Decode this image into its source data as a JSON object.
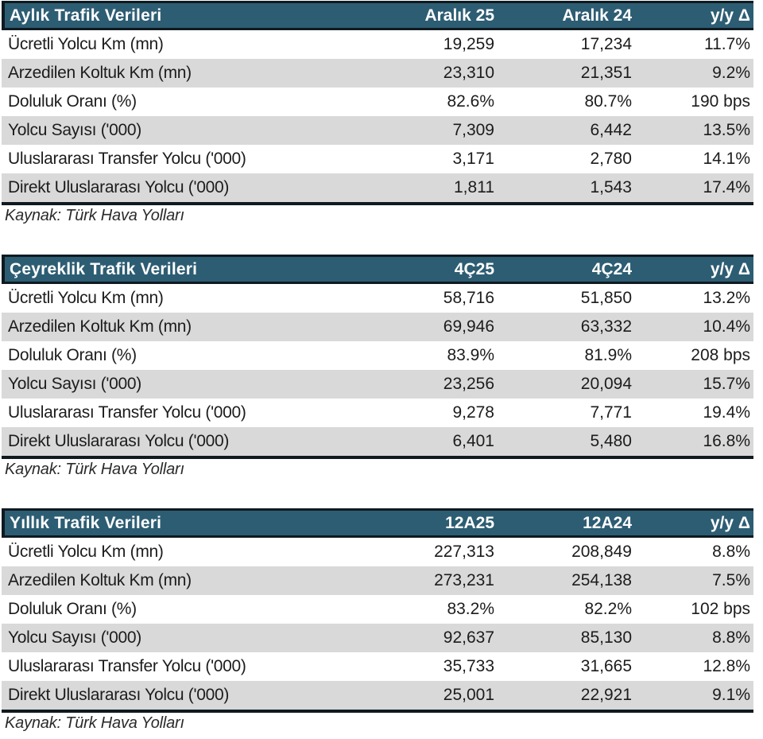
{
  "colors": {
    "header_bg": "#2d5d73",
    "header_text": "#ffffff",
    "row_alt_bg": "#d9d9d9",
    "row_bg": "#ffffff",
    "border_dark": "#0f1a20",
    "text": "#1c1c1c",
    "source_text": "#2b2b2b"
  },
  "tables": [
    {
      "title": "Aylık Trafik Verileri",
      "columns": [
        "Aralık 25",
        "Aralık 24",
        "y/y Δ"
      ],
      "rows": [
        {
          "label": "Ücretli Yolcu Km (mn)",
          "values": [
            "19,259",
            "17,234",
            "11.7%"
          ]
        },
        {
          "label": "Arzedilen Koltuk Km (mn)",
          "values": [
            "23,310",
            "21,351",
            "9.2%"
          ]
        },
        {
          "label": "Doluluk Oranı (%)",
          "values": [
            "82.6%",
            "80.7%",
            "190 bps"
          ]
        },
        {
          "label": "Yolcu Sayısı ('000)",
          "values": [
            "7,309",
            "6,442",
            "13.5%"
          ]
        },
        {
          "label": "Uluslararası Transfer Yolcu ('000)",
          "values": [
            "3,171",
            "2,780",
            "14.1%"
          ]
        },
        {
          "label": "Direkt Uluslararası Yolcu ('000)",
          "values": [
            "1,811",
            "1,543",
            "17.4%"
          ]
        }
      ],
      "source": "Kaynak: Türk Hava Yolları"
    },
    {
      "title": "Çeyreklik Trafik Verileri",
      "columns": [
        "4Ç25",
        "4Ç24",
        "y/y Δ"
      ],
      "rows": [
        {
          "label": "Ücretli Yolcu Km (mn)",
          "values": [
            "58,716",
            "51,850",
            "13.2%"
          ]
        },
        {
          "label": "Arzedilen Koltuk Km (mn)",
          "values": [
            "69,946",
            "63,332",
            "10.4%"
          ]
        },
        {
          "label": "Doluluk Oranı (%)",
          "values": [
            "83.9%",
            "81.9%",
            "208 bps"
          ]
        },
        {
          "label": "Yolcu Sayısı ('000)",
          "values": [
            "23,256",
            "20,094",
            "15.7%"
          ]
        },
        {
          "label": "Uluslararası Transfer Yolcu ('000)",
          "values": [
            "9,278",
            "7,771",
            "19.4%"
          ]
        },
        {
          "label": "Direkt Uluslararası Yolcu ('000)",
          "values": [
            "6,401",
            "5,480",
            "16.8%"
          ]
        }
      ],
      "source": "Kaynak: Türk Hava Yolları"
    },
    {
      "title": "Yıllık Trafik Verileri",
      "columns": [
        "12A25",
        "12A24",
        "y/y Δ"
      ],
      "rows": [
        {
          "label": "Ücretli Yolcu Km (mn)",
          "values": [
            "227,313",
            "208,849",
            "8.8%"
          ]
        },
        {
          "label": "Arzedilen Koltuk Km (mn)",
          "values": [
            "273,231",
            "254,138",
            "7.5%"
          ]
        },
        {
          "label": "Doluluk Oranı (%)",
          "values": [
            "83.2%",
            "82.2%",
            "102 bps"
          ]
        },
        {
          "label": "Yolcu Sayısı ('000)",
          "values": [
            "92,637",
            "85,130",
            "8.8%"
          ]
        },
        {
          "label": "Uluslararası Transfer Yolcu ('000)",
          "values": [
            "35,733",
            "31,665",
            "12.8%"
          ]
        },
        {
          "label": "Direkt Uluslararası Yolcu ('000)",
          "values": [
            "25,001",
            "22,921",
            "9.1%"
          ]
        }
      ],
      "source": "Kaynak: Türk Hava Yolları"
    }
  ]
}
